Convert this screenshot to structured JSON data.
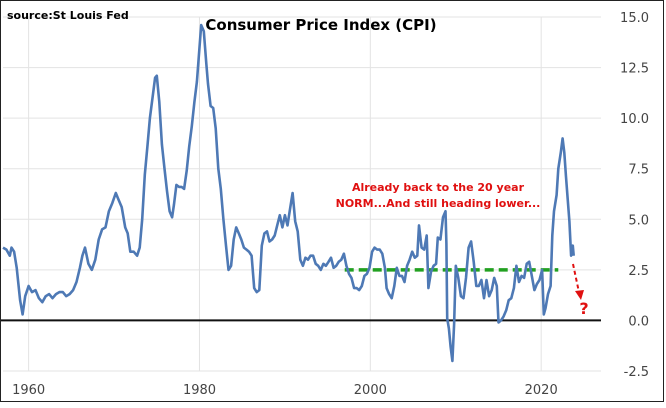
{
  "chart_data": {
    "type": "line",
    "title": "Consumer Price Index (CPI)",
    "source": "source:St Louis Fed",
    "annotation": "Already back to the 20 year NORM...And still heading lower...",
    "annotation_lines": [
      "Already back to the 20 year",
      "NORM...And still heading lower..."
    ],
    "question_mark": "?",
    "xlim": [
      1957,
      2027
    ],
    "ylim": [
      -2.5,
      15.0
    ],
    "x_ticks": [
      "1960",
      "1980",
      "2000",
      "2020"
    ],
    "y_ticks": [
      "15.0",
      "12.5",
      "10.0",
      "7.5",
      "5.0",
      "2.5",
      "0.0",
      "-2.5"
    ],
    "norm_level": 2.5,
    "norm_range": [
      1997,
      2022
    ],
    "colors": {
      "series": "#4e79b5",
      "norm": "#22a020",
      "annotation": "#e01010",
      "zero": "#111111",
      "grid": "#e3e3e3"
    },
    "series": [
      {
        "values": [
          [
            1957.0,
            3.6
          ],
          [
            1957.4,
            3.5
          ],
          [
            1957.8,
            3.2
          ],
          [
            1958.0,
            3.6
          ],
          [
            1958.3,
            3.4
          ],
          [
            1958.6,
            2.6
          ],
          [
            1959.0,
            1.0
          ],
          [
            1959.3,
            0.3
          ],
          [
            1959.6,
            1.2
          ],
          [
            1960.0,
            1.7
          ],
          [
            1960.4,
            1.4
          ],
          [
            1960.8,
            1.5
          ],
          [
            1961.2,
            1.1
          ],
          [
            1961.6,
            0.9
          ],
          [
            1962.0,
            1.2
          ],
          [
            1962.4,
            1.3
          ],
          [
            1962.8,
            1.1
          ],
          [
            1963.2,
            1.3
          ],
          [
            1963.6,
            1.4
          ],
          [
            1964.0,
            1.4
          ],
          [
            1964.4,
            1.2
          ],
          [
            1964.8,
            1.3
          ],
          [
            1965.2,
            1.5
          ],
          [
            1965.6,
            1.9
          ],
          [
            1966.0,
            2.6
          ],
          [
            1966.3,
            3.2
          ],
          [
            1966.6,
            3.6
          ],
          [
            1967.0,
            2.8
          ],
          [
            1967.4,
            2.5
          ],
          [
            1967.8,
            3.0
          ],
          [
            1968.2,
            4.0
          ],
          [
            1968.6,
            4.5
          ],
          [
            1969.0,
            4.6
          ],
          [
            1969.4,
            5.4
          ],
          [
            1969.8,
            5.8
          ],
          [
            1970.2,
            6.3
          ],
          [
            1970.5,
            6.0
          ],
          [
            1970.9,
            5.6
          ],
          [
            1971.3,
            4.6
          ],
          [
            1971.6,
            4.3
          ],
          [
            1971.9,
            3.4
          ],
          [
            1972.3,
            3.4
          ],
          [
            1972.7,
            3.2
          ],
          [
            1973.0,
            3.6
          ],
          [
            1973.3,
            5.0
          ],
          [
            1973.6,
            7.2
          ],
          [
            1973.9,
            8.6
          ],
          [
            1974.2,
            10.0
          ],
          [
            1974.5,
            11.0
          ],
          [
            1974.8,
            12.0
          ],
          [
            1975.0,
            12.1
          ],
          [
            1975.3,
            10.8
          ],
          [
            1975.6,
            8.7
          ],
          [
            1975.9,
            7.5
          ],
          [
            1976.2,
            6.4
          ],
          [
            1976.5,
            5.4
          ],
          [
            1976.8,
            5.1
          ],
          [
            1977.0,
            5.7
          ],
          [
            1977.3,
            6.7
          ],
          [
            1977.6,
            6.6
          ],
          [
            1977.9,
            6.6
          ],
          [
            1978.2,
            6.5
          ],
          [
            1978.5,
            7.4
          ],
          [
            1978.8,
            8.6
          ],
          [
            1979.1,
            9.6
          ],
          [
            1979.4,
            10.8
          ],
          [
            1979.7,
            11.8
          ],
          [
            1980.0,
            13.5
          ],
          [
            1980.2,
            14.6
          ],
          [
            1980.5,
            14.3
          ],
          [
            1980.8,
            12.7
          ],
          [
            1981.0,
            11.7
          ],
          [
            1981.3,
            10.6
          ],
          [
            1981.6,
            10.5
          ],
          [
            1981.9,
            9.5
          ],
          [
            1982.2,
            7.5
          ],
          [
            1982.5,
            6.5
          ],
          [
            1982.8,
            5.0
          ],
          [
            1983.1,
            3.7
          ],
          [
            1983.4,
            2.5
          ],
          [
            1983.7,
            2.7
          ],
          [
            1984.0,
            4.0
          ],
          [
            1984.3,
            4.6
          ],
          [
            1984.6,
            4.3
          ],
          [
            1984.9,
            4.0
          ],
          [
            1985.2,
            3.6
          ],
          [
            1985.5,
            3.5
          ],
          [
            1985.8,
            3.4
          ],
          [
            1986.1,
            3.2
          ],
          [
            1986.4,
            1.6
          ],
          [
            1986.7,
            1.4
          ],
          [
            1987.0,
            1.5
          ],
          [
            1987.3,
            3.7
          ],
          [
            1987.6,
            4.3
          ],
          [
            1987.9,
            4.4
          ],
          [
            1988.2,
            3.9
          ],
          [
            1988.5,
            4.0
          ],
          [
            1988.8,
            4.2
          ],
          [
            1989.1,
            4.7
          ],
          [
            1989.4,
            5.2
          ],
          [
            1989.7,
            4.6
          ],
          [
            1990.0,
            5.2
          ],
          [
            1990.3,
            4.7
          ],
          [
            1990.6,
            5.5
          ],
          [
            1990.9,
            6.3
          ],
          [
            1991.2,
            4.9
          ],
          [
            1991.5,
            4.4
          ],
          [
            1991.8,
            3.0
          ],
          [
            1992.1,
            2.7
          ],
          [
            1992.4,
            3.1
          ],
          [
            1992.7,
            3.0
          ],
          [
            1993.0,
            3.2
          ],
          [
            1993.3,
            3.2
          ],
          [
            1993.6,
            2.8
          ],
          [
            1993.9,
            2.7
          ],
          [
            1994.2,
            2.5
          ],
          [
            1994.5,
            2.8
          ],
          [
            1994.8,
            2.7
          ],
          [
            1995.1,
            2.9
          ],
          [
            1995.4,
            3.1
          ],
          [
            1995.7,
            2.6
          ],
          [
            1996.0,
            2.7
          ],
          [
            1996.3,
            2.9
          ],
          [
            1996.6,
            3.0
          ],
          [
            1996.9,
            3.3
          ],
          [
            1997.2,
            2.7
          ],
          [
            1997.5,
            2.3
          ],
          [
            1997.8,
            2.1
          ],
          [
            1998.1,
            1.6
          ],
          [
            1998.4,
            1.6
          ],
          [
            1998.7,
            1.5
          ],
          [
            1999.0,
            1.7
          ],
          [
            1999.3,
            2.2
          ],
          [
            1999.6,
            2.3
          ],
          [
            1999.9,
            2.6
          ],
          [
            2000.2,
            3.4
          ],
          [
            2000.5,
            3.6
          ],
          [
            2000.8,
            3.5
          ],
          [
            2001.1,
            3.5
          ],
          [
            2001.4,
            3.3
          ],
          [
            2001.7,
            2.6
          ],
          [
            2001.9,
            1.6
          ],
          [
            2002.2,
            1.3
          ],
          [
            2002.5,
            1.1
          ],
          [
            2002.8,
            1.7
          ],
          [
            2003.1,
            2.6
          ],
          [
            2003.4,
            2.2
          ],
          [
            2003.7,
            2.2
          ],
          [
            2004.0,
            1.9
          ],
          [
            2004.3,
            2.7
          ],
          [
            2004.6,
            3.0
          ],
          [
            2004.9,
            3.4
          ],
          [
            2005.2,
            3.1
          ],
          [
            2005.5,
            3.2
          ],
          [
            2005.7,
            4.7
          ],
          [
            2006.0,
            3.6
          ],
          [
            2006.3,
            3.5
          ],
          [
            2006.6,
            4.2
          ],
          [
            2006.8,
            1.6
          ],
          [
            2007.1,
            2.4
          ],
          [
            2007.4,
            2.7
          ],
          [
            2007.7,
            2.8
          ],
          [
            2007.9,
            4.1
          ],
          [
            2008.2,
            4.0
          ],
          [
            2008.5,
            5.1
          ],
          [
            2008.8,
            5.4
          ],
          [
            2008.9,
            3.8
          ],
          [
            2009.0,
            0.1
          ],
          [
            2009.2,
            -0.4
          ],
          [
            2009.4,
            -1.3
          ],
          [
            2009.6,
            -2.0
          ],
          [
            2009.8,
            -0.2
          ],
          [
            2010.0,
            2.7
          ],
          [
            2010.3,
            2.1
          ],
          [
            2010.6,
            1.2
          ],
          [
            2010.9,
            1.1
          ],
          [
            2011.2,
            2.1
          ],
          [
            2011.5,
            3.6
          ],
          [
            2011.8,
            3.9
          ],
          [
            2012.1,
            2.9
          ],
          [
            2012.4,
            1.7
          ],
          [
            2012.7,
            1.7
          ],
          [
            2013.0,
            2.0
          ],
          [
            2013.3,
            1.1
          ],
          [
            2013.6,
            2.0
          ],
          [
            2013.9,
            1.2
          ],
          [
            2014.2,
            1.5
          ],
          [
            2014.5,
            2.1
          ],
          [
            2014.8,
            1.7
          ],
          [
            2015.0,
            -0.1
          ],
          [
            2015.3,
            0.0
          ],
          [
            2015.6,
            0.2
          ],
          [
            2015.9,
            0.5
          ],
          [
            2016.2,
            1.0
          ],
          [
            2016.5,
            1.1
          ],
          [
            2016.8,
            1.6
          ],
          [
            2017.1,
            2.7
          ],
          [
            2017.4,
            1.9
          ],
          [
            2017.7,
            2.2
          ],
          [
            2018.0,
            2.1
          ],
          [
            2018.3,
            2.8
          ],
          [
            2018.6,
            2.9
          ],
          [
            2018.9,
            2.2
          ],
          [
            2019.2,
            1.5
          ],
          [
            2019.5,
            1.8
          ],
          [
            2019.8,
            2.0
          ],
          [
            2020.1,
            2.5
          ],
          [
            2020.3,
            0.3
          ],
          [
            2020.5,
            0.6
          ],
          [
            2020.8,
            1.3
          ],
          [
            2021.1,
            1.7
          ],
          [
            2021.3,
            4.2
          ],
          [
            2021.5,
            5.4
          ],
          [
            2021.8,
            6.2
          ],
          [
            2022.0,
            7.5
          ],
          [
            2022.3,
            8.3
          ],
          [
            2022.5,
            9.0
          ],
          [
            2022.7,
            8.3
          ],
          [
            2022.9,
            7.1
          ],
          [
            2023.1,
            6.0
          ],
          [
            2023.3,
            4.9
          ],
          [
            2023.5,
            3.2
          ],
          [
            2023.7,
            3.7
          ],
          [
            2023.8,
            3.2
          ]
        ]
      }
    ]
  }
}
